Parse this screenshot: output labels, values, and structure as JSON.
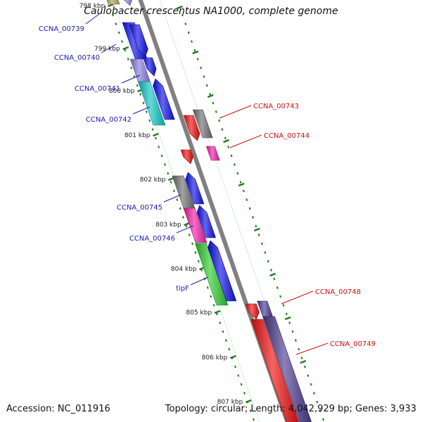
{
  "title": "Caulobacter crescentus NA1000, complete genome",
  "footer": {
    "accession": "Accession: NC_011916",
    "summary": "Topology: circular; Length: 4,042,929 bp; Genes: 3,933"
  },
  "colors": {
    "backbone": "#808080",
    "tick": "#1f7a1f",
    "forward_label": "#1a1ab3",
    "reverse_label": "#cc1111",
    "blue": "#1010e6",
    "cyan": "#14c6c6",
    "grey": "#707070",
    "pink": "#f020a8",
    "green": "#30cc30",
    "red": "#ee1111",
    "purple": "#4c3c90",
    "lavender": "#8c7ae0",
    "olive": "#aaa860"
  },
  "position_labels": [
    "798 kbp",
    "799 kbp",
    "800 kbp",
    "801 kbp",
    "802 kbp",
    "803 kbp",
    "804 kbp",
    "805 kbp",
    "806 kbp",
    "807 kbp"
  ],
  "forward_genes": [
    {
      "label": "CCNA_00739",
      "color": "blue"
    },
    {
      "label": "CCNA_00740",
      "color": "blue"
    },
    {
      "label": "CCNA_00741",
      "color": "blue"
    },
    {
      "label": "CCNA_00742",
      "color": "blue"
    },
    {
      "label": "CCNA_00745",
      "color": "blue"
    },
    {
      "label": "CCNA_00746",
      "color": "blue"
    },
    {
      "label": "tipF",
      "color": "blue"
    }
  ],
  "reverse_genes": [
    {
      "label": "CCNA_00743",
      "color": "red"
    },
    {
      "label": "CCNA_00744",
      "color": "red"
    },
    {
      "label": "CCNA_00748",
      "color": "red"
    },
    {
      "label": "CCNA_00749",
      "color": "red"
    }
  ]
}
